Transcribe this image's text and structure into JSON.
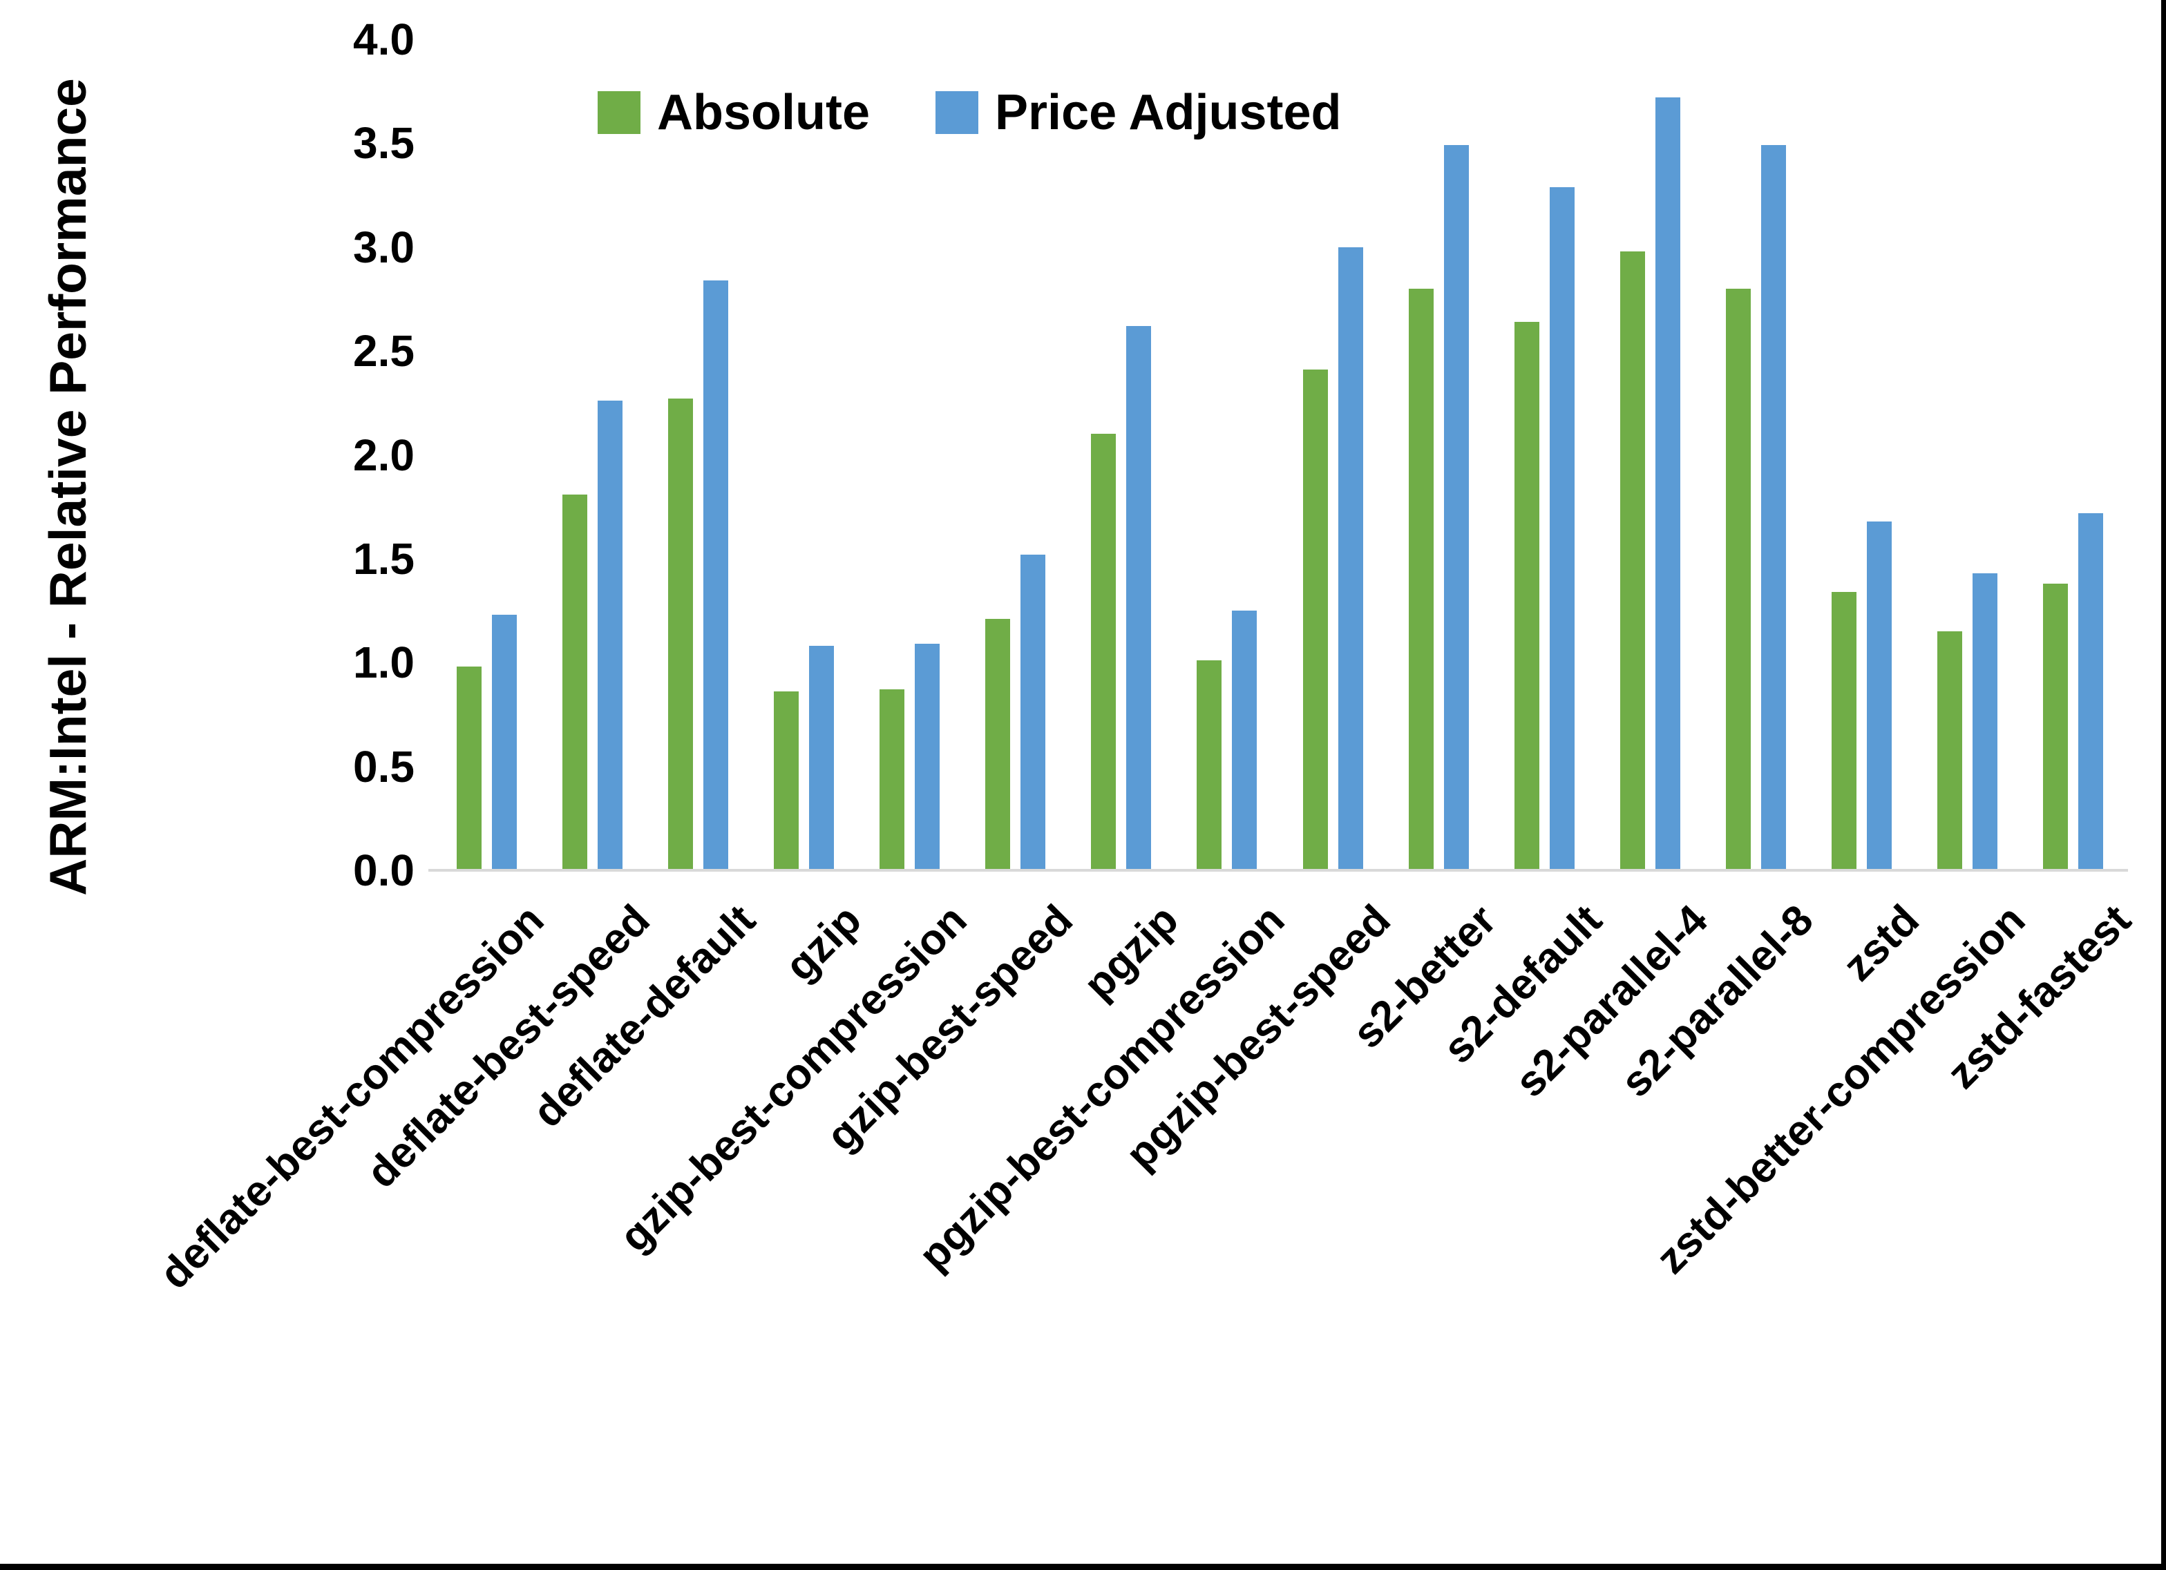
{
  "chart_data": {
    "type": "bar",
    "title": "",
    "xlabel": "",
    "ylabel": "ARM:Intel - Relative Performance",
    "ylim": [
      0.0,
      4.0
    ],
    "ytick_labels": [
      "0.0",
      "0.5",
      "1.0",
      "1.5",
      "2.0",
      "2.5",
      "3.0",
      "3.5",
      "4.0"
    ],
    "grid": false,
    "legend_position": "top-center",
    "categories": [
      "deflate-best-compression",
      "deflate-best-speed",
      "deflate-default",
      "gzip",
      "gzip-best-compression",
      "gzip-best-speed",
      "pgzip",
      "pgzip-best-compression",
      "pgzip-best-speed",
      "s2-better",
      "s2-default",
      "s2-parallel-4",
      "s2-parallel-8",
      "zstd",
      "zstd-better-compression",
      "zstd-fastest"
    ],
    "series": [
      {
        "name": "Absolute",
        "color": "#70AD47",
        "values": [
          0.98,
          1.81,
          2.27,
          0.86,
          0.87,
          1.21,
          2.1,
          1.01,
          2.41,
          2.8,
          2.64,
          2.98,
          2.8,
          1.34,
          1.15,
          1.38
        ]
      },
      {
        "name": "Price Adjusted",
        "color": "#5B9BD5",
        "values": [
          1.23,
          2.26,
          2.84,
          1.08,
          1.09,
          1.52,
          2.62,
          1.25,
          3.0,
          3.49,
          3.29,
          3.72,
          3.49,
          1.68,
          1.43,
          1.72
        ]
      }
    ],
    "axis_line_color": "#d9d9d9",
    "text_color": "#000000"
  }
}
